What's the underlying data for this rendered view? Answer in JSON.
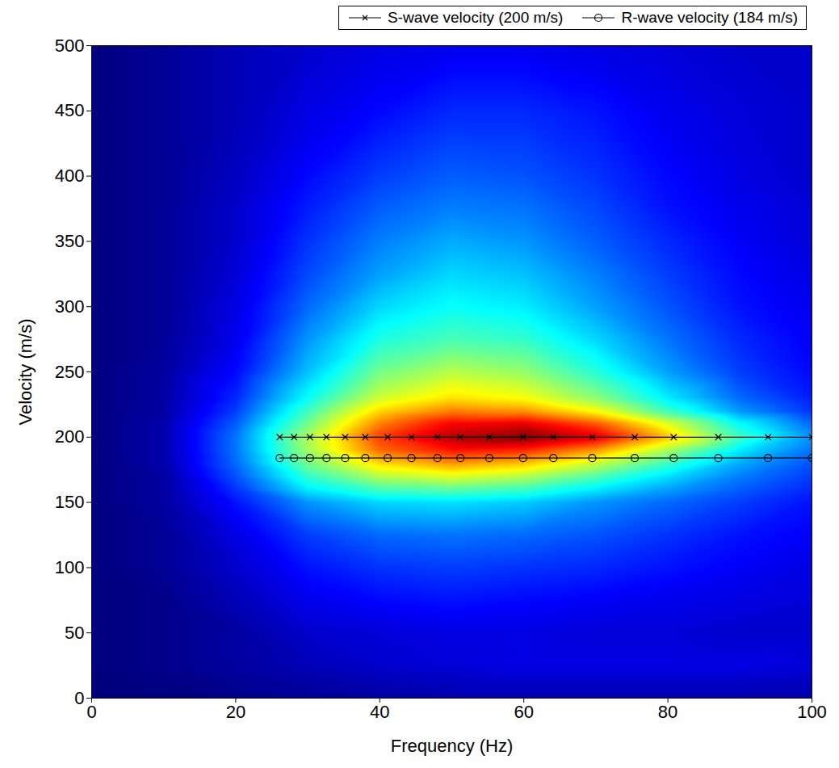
{
  "chart_data": {
    "type": "heatmap",
    "xlabel": "Frequency (Hz)",
    "ylabel": "Velocity (m/s)",
    "xlim": [
      0,
      100
    ],
    "ylim": [
      0,
      500
    ],
    "xticks": [
      0,
      20,
      40,
      60,
      80,
      100
    ],
    "yticks": [
      0,
      50,
      100,
      150,
      200,
      250,
      300,
      350,
      400,
      450,
      500
    ],
    "legend": "top",
    "heatmap": {
      "x": [
        0,
        10,
        20,
        30,
        40,
        50,
        60,
        70,
        80,
        90,
        100
      ],
      "y": [
        0,
        25,
        50,
        75,
        100,
        125,
        150,
        160,
        170,
        180,
        190,
        200,
        210,
        220,
        230,
        250,
        275,
        300,
        325,
        350,
        375,
        400,
        450,
        500
      ],
      "values": [
        [
          0.05,
          0.05,
          0.06,
          0.07,
          0.08,
          0.09,
          0.09,
          0.09,
          0.09,
          0.09,
          0.09
        ],
        [
          0.05,
          0.06,
          0.08,
          0.1,
          0.12,
          0.13,
          0.14,
          0.14,
          0.14,
          0.14,
          0.13
        ],
        [
          0.05,
          0.06,
          0.08,
          0.12,
          0.13,
          0.14,
          0.14,
          0.13,
          0.13,
          0.12,
          0.12
        ],
        [
          0.05,
          0.06,
          0.1,
          0.15,
          0.17,
          0.18,
          0.17,
          0.16,
          0.15,
          0.14,
          0.13
        ],
        [
          0.05,
          0.07,
          0.12,
          0.18,
          0.21,
          0.22,
          0.21,
          0.2,
          0.18,
          0.16,
          0.14
        ],
        [
          0.05,
          0.07,
          0.14,
          0.22,
          0.26,
          0.27,
          0.26,
          0.24,
          0.21,
          0.18,
          0.16
        ],
        [
          0.05,
          0.08,
          0.18,
          0.3,
          0.36,
          0.37,
          0.35,
          0.3,
          0.26,
          0.22,
          0.18
        ],
        [
          0.05,
          0.08,
          0.21,
          0.38,
          0.46,
          0.48,
          0.45,
          0.38,
          0.31,
          0.25,
          0.2
        ],
        [
          0.05,
          0.08,
          0.24,
          0.44,
          0.56,
          0.6,
          0.56,
          0.47,
          0.37,
          0.28,
          0.22
        ],
        [
          0.05,
          0.09,
          0.26,
          0.5,
          0.66,
          0.72,
          0.68,
          0.58,
          0.45,
          0.32,
          0.24
        ],
        [
          0.05,
          0.09,
          0.27,
          0.54,
          0.76,
          0.84,
          0.82,
          0.72,
          0.55,
          0.38,
          0.27
        ],
        [
          0.05,
          0.09,
          0.27,
          0.55,
          0.8,
          0.92,
          0.97,
          0.88,
          0.68,
          0.45,
          0.3
        ],
        [
          0.05,
          0.09,
          0.25,
          0.5,
          0.74,
          0.86,
          0.88,
          0.78,
          0.6,
          0.4,
          0.26
        ],
        [
          0.05,
          0.08,
          0.22,
          0.45,
          0.66,
          0.74,
          0.72,
          0.62,
          0.45,
          0.3,
          0.21
        ],
        [
          0.05,
          0.08,
          0.2,
          0.4,
          0.58,
          0.65,
          0.62,
          0.52,
          0.38,
          0.26,
          0.19
        ],
        [
          0.05,
          0.08,
          0.17,
          0.34,
          0.5,
          0.56,
          0.53,
          0.43,
          0.31,
          0.22,
          0.17
        ],
        [
          0.05,
          0.07,
          0.15,
          0.3,
          0.42,
          0.46,
          0.44,
          0.36,
          0.27,
          0.2,
          0.16
        ],
        [
          0.05,
          0.07,
          0.14,
          0.26,
          0.36,
          0.4,
          0.38,
          0.31,
          0.24,
          0.18,
          0.15
        ],
        [
          0.05,
          0.07,
          0.13,
          0.23,
          0.31,
          0.36,
          0.34,
          0.28,
          0.22,
          0.17,
          0.14
        ],
        [
          0.05,
          0.07,
          0.12,
          0.21,
          0.28,
          0.32,
          0.3,
          0.25,
          0.2,
          0.16,
          0.13
        ],
        [
          0.05,
          0.07,
          0.12,
          0.19,
          0.25,
          0.28,
          0.27,
          0.23,
          0.18,
          0.15,
          0.13
        ],
        [
          0.05,
          0.07,
          0.11,
          0.17,
          0.22,
          0.25,
          0.24,
          0.21,
          0.17,
          0.14,
          0.12
        ],
        [
          0.05,
          0.07,
          0.1,
          0.14,
          0.17,
          0.2,
          0.2,
          0.18,
          0.15,
          0.13,
          0.12
        ],
        [
          0.05,
          0.07,
          0.1,
          0.12,
          0.14,
          0.15,
          0.15,
          0.14,
          0.13,
          0.12,
          0.12
        ]
      ]
    },
    "series": [
      {
        "name": "S-wave velocity (200 m/s)",
        "color": "#000000",
        "marker": "x",
        "line_style": "solid",
        "x": [
          26.1,
          28.1,
          30.3,
          32.6,
          35.2,
          38.0,
          41.1,
          44.4,
          48.0,
          51.2,
          55.2,
          59.9,
          64.1,
          69.5,
          75.4,
          80.8,
          87.0,
          93.9,
          100
        ],
        "values": [
          200,
          200,
          200,
          200,
          200,
          200,
          200,
          200,
          200,
          200,
          200,
          200,
          200,
          200,
          200,
          200,
          200,
          200,
          200
        ]
      },
      {
        "name": "R-wave velocity (184 m/s)",
        "color": "#000000",
        "marker": "o",
        "line_style": "solid",
        "x": [
          26.1,
          28.1,
          30.3,
          32.6,
          35.2,
          38.0,
          41.1,
          44.4,
          48.0,
          51.2,
          55.2,
          59.9,
          64.1,
          69.5,
          75.4,
          80.8,
          87.0,
          93.9,
          100
        ],
        "values": [
          184,
          184,
          184,
          184,
          184,
          184,
          184,
          184,
          184,
          184,
          184,
          184,
          184,
          184,
          184,
          184,
          184,
          184,
          184
        ]
      }
    ]
  }
}
